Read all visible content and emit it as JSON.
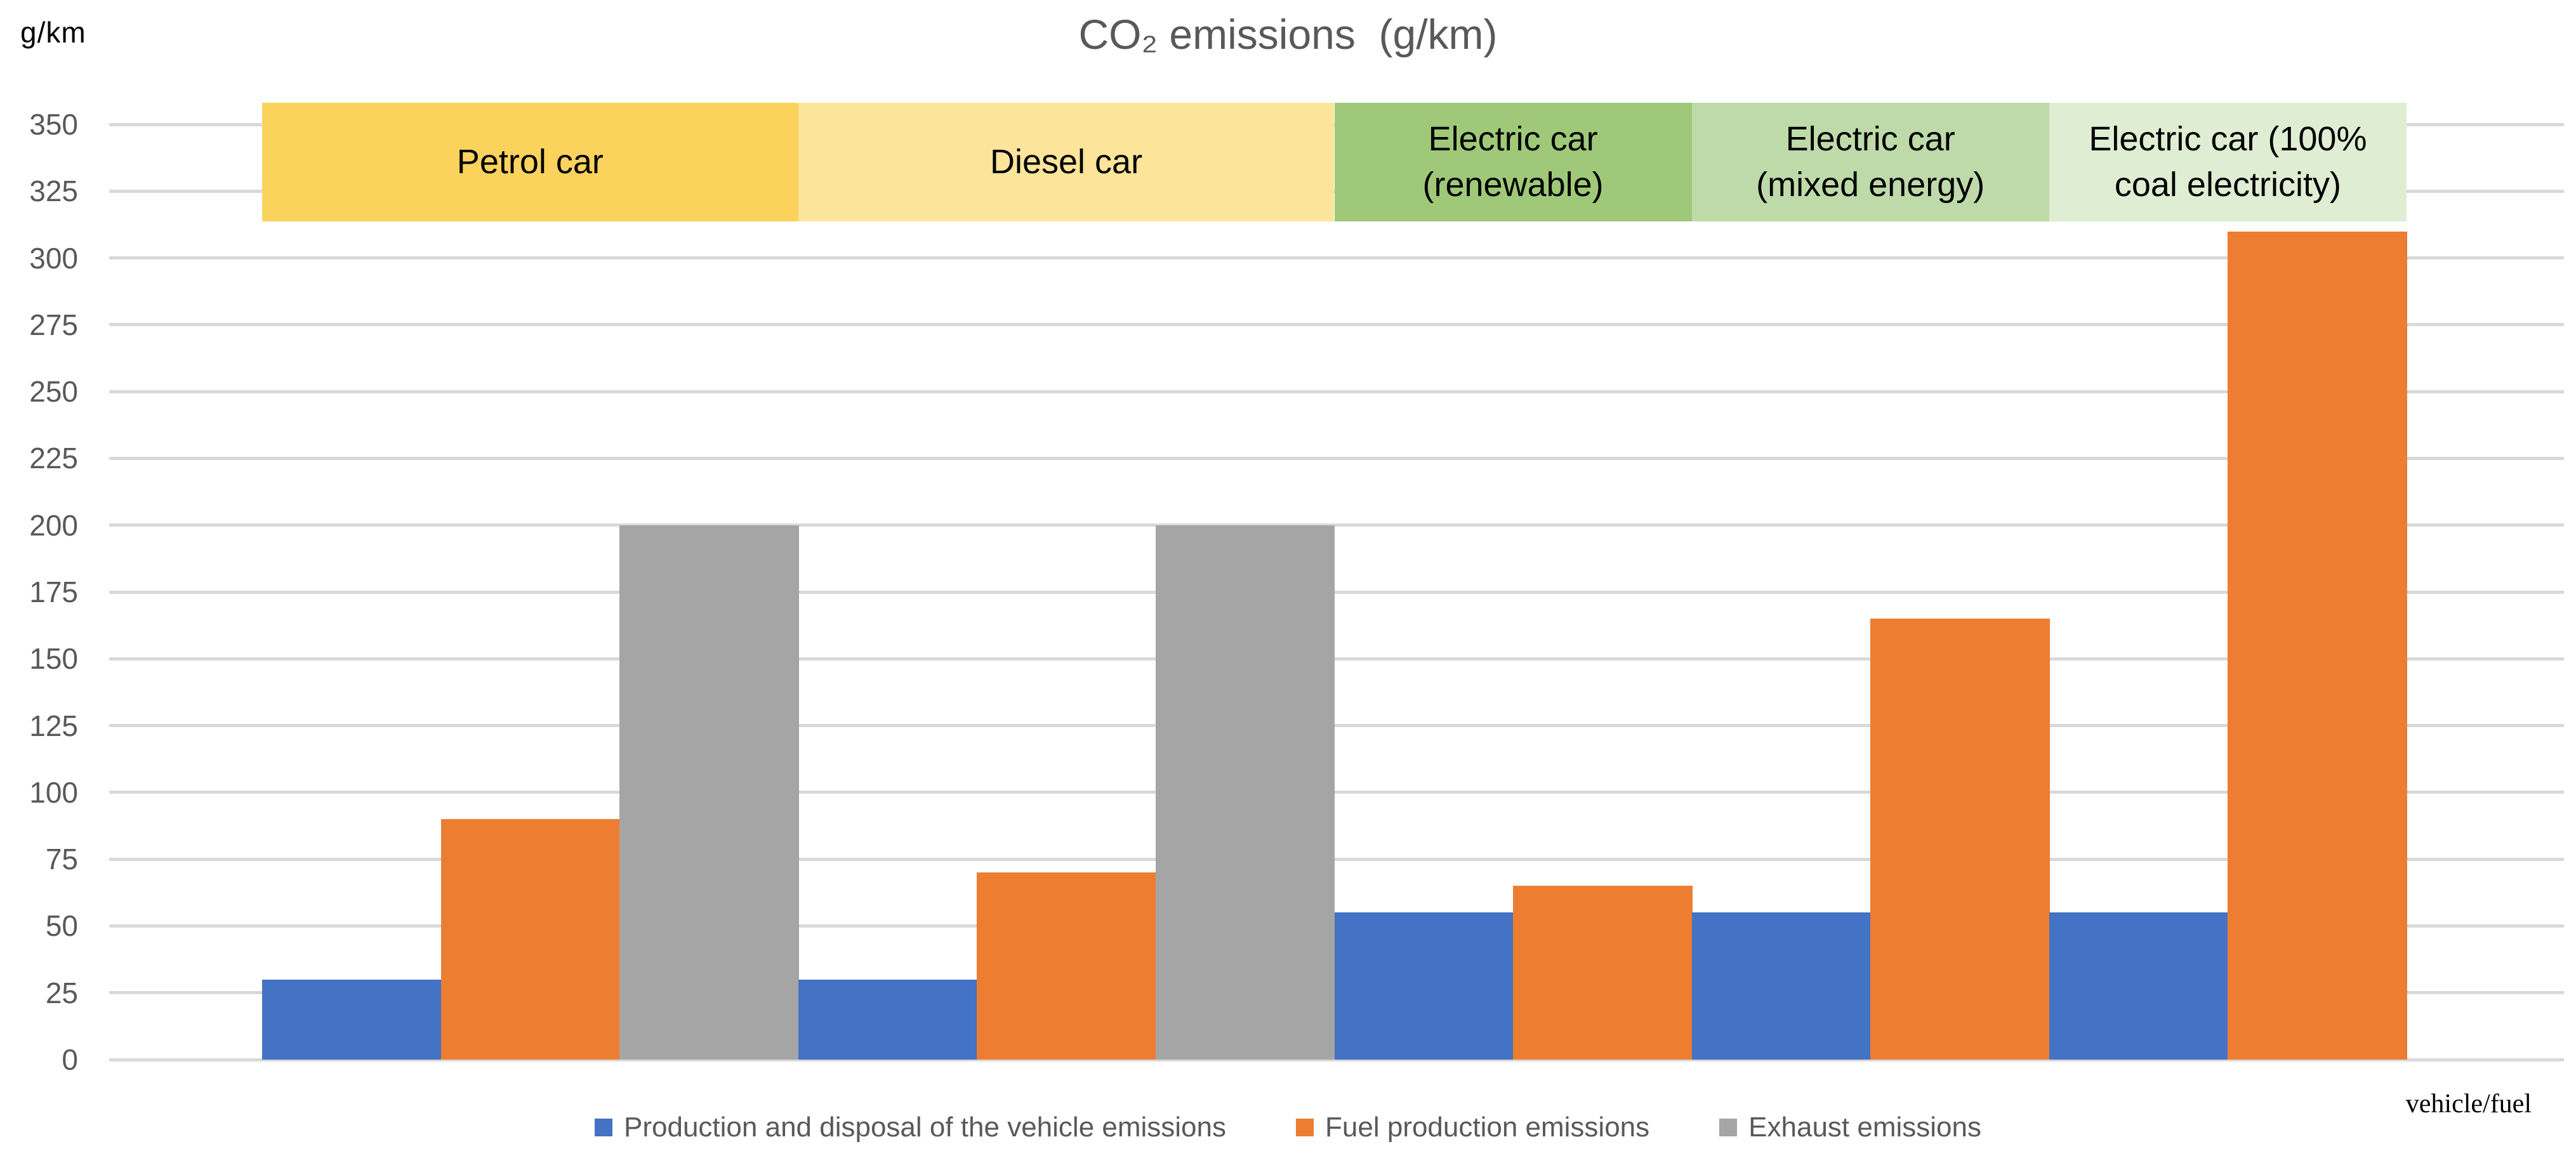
{
  "title": "CO₂ emissions  (g/km)",
  "y_axis": {
    "unit_label": "g/km",
    "ticks": [
      0,
      25,
      50,
      75,
      100,
      125,
      150,
      175,
      200,
      225,
      250,
      275,
      300,
      325,
      350
    ]
  },
  "x_axis": {
    "label": "vehicle/fuel"
  },
  "colors": {
    "series": {
      "production": "#4472C4",
      "fuel": "#ED7D31",
      "exhaust": "#A5A5A5"
    },
    "grid": "#D9D9D9",
    "title_text": "#595959",
    "axis_text": "#595959",
    "band_text": "#000000"
  },
  "legend": {
    "items": [
      {
        "label": "Production and disposal of the vehicle emissions",
        "color_key": "production"
      },
      {
        "label": "Fuel production emissions",
        "color_key": "fuel"
      },
      {
        "label": "Exhaust emissions",
        "color_key": "exhaust"
      }
    ]
  },
  "chart_data": {
    "type": "bar",
    "title": "CO₂ emissions  (g/km)",
    "ylabel": "g/km",
    "xlabel": "vehicle/fuel",
    "ylim": [
      0,
      350
    ],
    "ytick_step": 25,
    "grid": true,
    "legend_position": "bottom-center",
    "categories": [
      "Petrol car",
      "Diesel car",
      "Electric car (renewable)",
      "Electric car (mixed energy)",
      "Electric car (100% coal electricity)"
    ],
    "series": [
      {
        "name": "Production and disposal of the vehicle emissions",
        "key": "production",
        "color": "#4472C4",
        "values": [
          30,
          30,
          55,
          55,
          55
        ]
      },
      {
        "name": "Fuel production emissions",
        "key": "fuel",
        "color": "#ED7D31",
        "values": [
          90,
          70,
          65,
          165,
          310
        ]
      },
      {
        "name": "Exhaust emissions",
        "key": "exhaust",
        "color": "#A5A5A5",
        "values": [
          200,
          200,
          null,
          null,
          null
        ]
      }
    ],
    "groups": [
      {
        "label": "Petrol car",
        "label_lines": [
          "Petrol car"
        ],
        "band_color": "#FBD35C",
        "bars": [
          {
            "key": "production",
            "value": 30
          },
          {
            "key": "fuel",
            "value": 90
          },
          {
            "key": "exhaust",
            "value": 200
          }
        ]
      },
      {
        "label": "Diesel car",
        "label_lines": [
          "Diesel car"
        ],
        "band_color": "#FCE49B",
        "bars": [
          {
            "key": "production",
            "value": 30
          },
          {
            "key": "fuel",
            "value": 70
          },
          {
            "key": "exhaust",
            "value": 200
          }
        ]
      },
      {
        "label": "Electric car (renewable)",
        "label_lines": [
          "Electric car",
          "(renewable)"
        ],
        "band_color": "#9FC978",
        "bars": [
          {
            "key": "production",
            "value": 55
          },
          {
            "key": "fuel",
            "value": 65
          }
        ]
      },
      {
        "label": "Electric car (mixed energy)",
        "label_lines": [
          "Electric car",
          "(mixed energy)"
        ],
        "band_color": "#BEDAA9",
        "bars": [
          {
            "key": "production",
            "value": 55
          },
          {
            "key": "fuel",
            "value": 165
          }
        ]
      },
      {
        "label": "Electric car (100% coal electricity)",
        "label_lines": [
          "Electric car (100%",
          "coal electricity)"
        ],
        "band_color": "#DFEDD3",
        "bars": [
          {
            "key": "production",
            "value": 55
          },
          {
            "key": "fuel",
            "value": 310
          }
        ]
      }
    ]
  }
}
